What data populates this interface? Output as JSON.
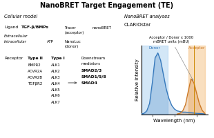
{
  "chart_data": {
    "type": "line",
    "title": "NanoBRET Target Engagement (TE)",
    "x_label": "Wavelength (nm)",
    "y_label": "Relative Intensity",
    "series": [
      {
        "name": "Donor",
        "color": "#3377bb",
        "x": [
          440,
          450,
          460,
          470,
          480,
          490,
          500,
          510,
          520,
          530,
          540,
          550,
          560,
          570,
          580,
          590,
          600,
          610,
          620,
          630,
          640,
          650,
          660,
          670
        ],
        "values": [
          0.01,
          0.02,
          0.06,
          0.18,
          0.52,
          0.92,
          1.0,
          0.88,
          0.65,
          0.42,
          0.26,
          0.15,
          0.09,
          0.06,
          0.05,
          0.04,
          0.04,
          0.035,
          0.03,
          0.025,
          0.02,
          0.018,
          0.015,
          0.01
        ],
        "band": [
          440,
          535
        ],
        "band_color": "#a8d0f0"
      },
      {
        "name": "Acceptor",
        "color": "#cc7722",
        "x": [
          570,
          580,
          590,
          600,
          610,
          620,
          630,
          640,
          650,
          660,
          670
        ],
        "values": [
          0.01,
          0.02,
          0.06,
          0.16,
          0.38,
          0.58,
          0.52,
          0.35,
          0.18,
          0.07,
          0.02
        ],
        "band": [
          610,
          670
        ],
        "band_color": "#f5c080",
        "vline": 632,
        "vline_color": "#cc8800"
      }
    ],
    "xlim": [
      440,
      680
    ],
    "ylim": [
      0,
      1.12
    ],
    "xticks": [
      480,
      560,
      640
    ],
    "yticks": [],
    "tick_labels": false,
    "annotations": [
      {
        "text": "Acceptor / Donor x 1000\nmBRET units (mBU)",
        "x": 632,
        "y": 0.52
      }
    ],
    "diagram": {
      "left_label": "Cellular model",
      "right_label": "NanoBRET analyses",
      "ligand": [
        "Ligand",
        "TGF-β/BMPs"
      ],
      "compartments": [
        "Extracellular",
        "Intracellular"
      ],
      "molecules": [
        "ATP",
        "NanoLuc",
        "(donor)",
        "Tracer",
        "(acceptor)",
        "nanoBRET"
      ],
      "receptor_label": "Receptor",
      "type_ii": {
        "heading": "Type II",
        "items": [
          "BMPR2",
          "ACVR2A",
          "ACVR2B",
          "TGFβR2"
        ]
      },
      "type_i": {
        "heading": "Type I",
        "items": [
          "ALK1",
          "ALK2",
          "ALK3",
          "ALK4",
          "ALK5",
          "ALK6",
          "ALK7"
        ]
      },
      "downstream": {
        "heading": [
          "Downstream",
          "mediators"
        ],
        "items": [
          "SMAD2/3",
          "SMAD1/5/8",
          "SMAD4"
        ]
      },
      "instrument": "CLARIOstar"
    }
  }
}
